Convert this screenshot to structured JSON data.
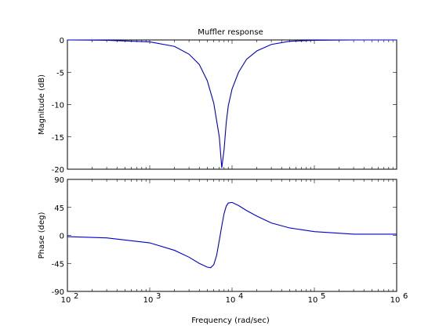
{
  "chart_data": {
    "type": "line",
    "title": "Muffler response",
    "xlabel": "Frequency  (rad/sec)",
    "xscale": "log",
    "xlim": [
      100,
      1000000
    ],
    "x_ticks": [
      {
        "base": "10",
        "exp": "2"
      },
      {
        "base": "10",
        "exp": "3"
      },
      {
        "base": "10",
        "exp": "4"
      },
      {
        "base": "10",
        "exp": "5"
      },
      {
        "base": "10",
        "exp": "6"
      }
    ],
    "line_color": "#0000cc",
    "grid": false,
    "panels": [
      {
        "ylabel": "Magnitude (dB)",
        "ylim": [
          -20,
          0
        ],
        "y_ticks": [
          "0",
          "-5",
          "-10",
          "-15",
          "-20"
        ],
        "y_tick_values": [
          0,
          -5,
          -10,
          -15,
          -20
        ],
        "series": [
          {
            "x": [
              100,
              300,
              1000,
              2000,
              3000,
              4000,
              5000,
              6000,
              7000,
              7500,
              8000,
              8500,
              9000,
              10000,
              12000,
              15000,
              20000,
              30000,
              50000,
              100000,
              300000,
              1000000
            ],
            "values": [
              0,
              -0.05,
              -0.3,
              -1.0,
              -2.2,
              -3.8,
              -6.3,
              -9.8,
              -15.0,
              -19.8,
              -17.0,
              -12.8,
              -10.2,
              -7.6,
              -5.0,
              -3.0,
              -1.7,
              -0.7,
              -0.2,
              -0.05,
              0,
              0
            ]
          }
        ]
      },
      {
        "ylabel": "Phase (deg)",
        "ylim": [
          -90,
          90
        ],
        "y_ticks": [
          "90",
          "45",
          "0",
          "-45",
          "-90"
        ],
        "y_tick_values": [
          90,
          45,
          0,
          -45,
          -90
        ],
        "series": [
          {
            "x": [
              100,
              300,
              1000,
              2000,
              3000,
              4000,
              5000,
              5500,
              6000,
              6500,
              7000,
              7500,
              8000,
              8500,
              9000,
              10000,
              12000,
              15000,
              20000,
              30000,
              50000,
              100000,
              300000,
              1000000
            ],
            "values": [
              -2,
              -4,
              -12,
              -24,
              -35,
              -45,
              -51,
              -52,
              -47,
              -32,
              -8,
              15,
              35,
              47,
              52,
              53,
              48,
              40,
              31,
              20,
              12,
              6,
              2,
              2
            ]
          }
        ]
      }
    ]
  }
}
